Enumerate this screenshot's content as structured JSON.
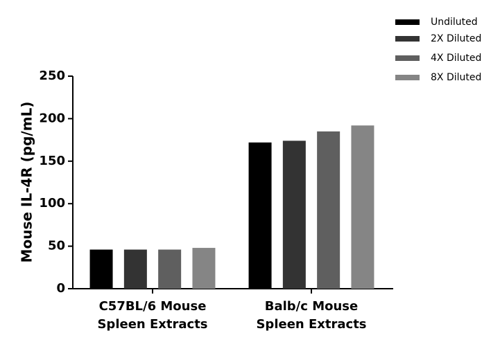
{
  "chart_data": {
    "type": "bar",
    "y_label": "Mouse IL-4R (pg/mL)",
    "categories": [
      "C57BL/6 Mouse\nSpleen Extracts",
      "Balb/c Mouse\nSpleen Extracts"
    ],
    "series": [
      {
        "name": "Undiluted",
        "color": "#000000",
        "values": [
          46,
          172
        ]
      },
      {
        "name": "2X Diluted",
        "color": "#333333",
        "values": [
          46,
          174
        ]
      },
      {
        "name": "4X Diluted",
        "color": "#5f5f5f",
        "values": [
          46,
          185
        ]
      },
      {
        "name": "8X Diluted",
        "color": "#858585",
        "values": [
          48,
          192
        ]
      }
    ],
    "ylim": [
      0,
      250
    ],
    "yticks": [
      0,
      50,
      100,
      150,
      200,
      250
    ],
    "legend": "top-right"
  }
}
